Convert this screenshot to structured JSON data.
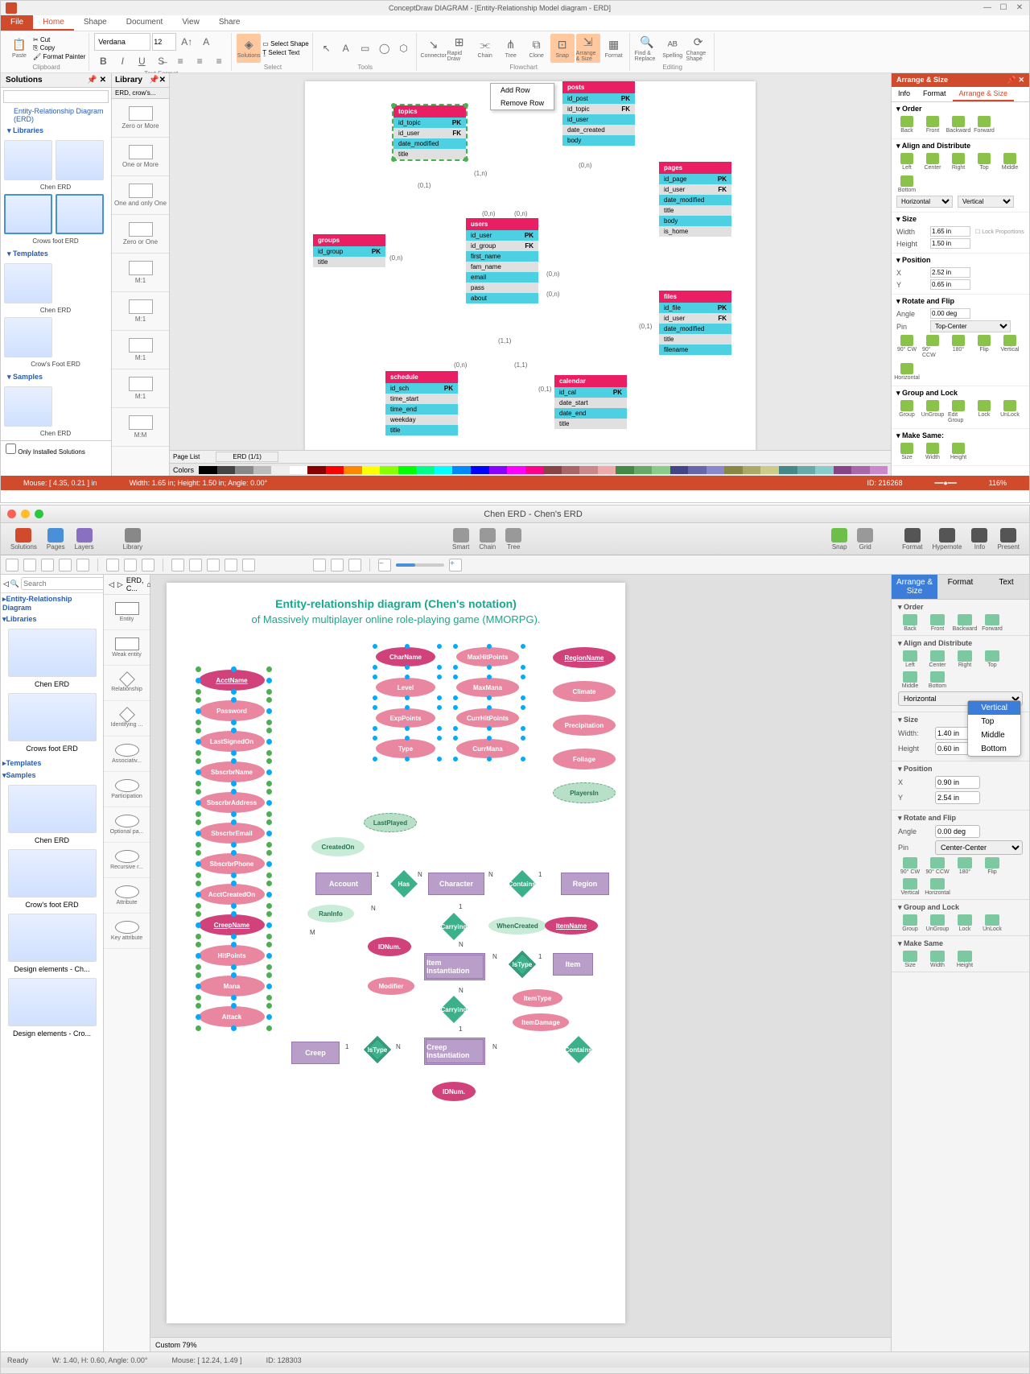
{
  "win": {
    "title": "ConceptDraw DIAGRAM - [Entity-Relationship Model diagram - ERD]",
    "tabs": [
      "File",
      "Home",
      "Shape",
      "Document",
      "View",
      "Share"
    ],
    "font": "Verdana",
    "size": "12",
    "ribbon_groups": [
      "Clipboard",
      "Text Format",
      "Select",
      "Tools",
      "Flowchart",
      "Panels",
      "Editing"
    ],
    "clipboard": {
      "paste": "Paste",
      "cut": "Cut",
      "copy": "Copy",
      "fmt": "Format Painter"
    },
    "tools": {
      "solutions": "Solutions",
      "selshape": "Select Shape",
      "seltext": "Select Text"
    },
    "flow": [
      "Connector",
      "Rapid Draw",
      "Chain",
      "Tree",
      "Clone",
      "Snap",
      "Arrange & Size",
      "Format"
    ],
    "editing": [
      "Find & Replace",
      "Spelling",
      "Change Shape"
    ],
    "solutions": {
      "hdr": "Solutions",
      "erd": "Entity-Relationship Diagram (ERD)",
      "libs": "Libraries",
      "templates": "Templates",
      "samples": "Samples",
      "items": [
        "Chen ERD",
        "Crows foot ERD",
        "Chen ERD",
        "Crow's Foot ERD",
        "Chen ERD"
      ],
      "only": "Only Installed Solutions"
    },
    "library": {
      "hdr": "Library",
      "tab": "ERD, crow's...",
      "items": [
        "Zero or More",
        "One or More",
        "One and only One",
        "Zero or One",
        "M:1",
        "M:1",
        "M:1",
        "M:1",
        "M:M"
      ]
    },
    "ctxmenu": [
      "Add Row",
      "Remove Row"
    ],
    "erd": {
      "topics": {
        "name": "topics",
        "rows": [
          [
            "id_topic",
            "PK"
          ],
          [
            "id_user",
            "FK"
          ],
          [
            "date_modified",
            ""
          ],
          [
            "title",
            ""
          ]
        ]
      },
      "posts": {
        "name": "posts",
        "rows": [
          [
            "id_post",
            "PK"
          ],
          [
            "id_topic",
            "FK"
          ],
          [
            "id_user",
            ""
          ],
          [
            "date_created",
            ""
          ],
          [
            "body",
            ""
          ]
        ]
      },
      "pages": {
        "name": "pages",
        "rows": [
          [
            "id_page",
            "PK"
          ],
          [
            "id_user",
            "FK"
          ],
          [
            "date_modified",
            ""
          ],
          [
            "title",
            ""
          ],
          [
            "body",
            ""
          ],
          [
            "is_home",
            ""
          ]
        ]
      },
      "groups": {
        "name": "groups",
        "rows": [
          [
            "id_group",
            "PK"
          ],
          [
            "title",
            ""
          ]
        ]
      },
      "users": {
        "name": "users",
        "rows": [
          [
            "id_user",
            "PK"
          ],
          [
            "id_group",
            "FK"
          ],
          [
            "first_name",
            ""
          ],
          [
            "fam_name",
            ""
          ],
          [
            "email",
            ""
          ],
          [
            "pass",
            ""
          ],
          [
            "about",
            ""
          ]
        ]
      },
      "files": {
        "name": "files",
        "rows": [
          [
            "id_file",
            "PK"
          ],
          [
            "id_user",
            "FK"
          ],
          [
            "date_modified",
            ""
          ],
          [
            "title",
            ""
          ],
          [
            "filename",
            ""
          ]
        ]
      },
      "schedule": {
        "name": "schedule",
        "rows": [
          [
            "id_sch",
            "PK"
          ],
          [
            "time_start",
            ""
          ],
          [
            "time_end",
            ""
          ],
          [
            "weekday",
            ""
          ],
          [
            "title",
            ""
          ]
        ]
      },
      "calendar": {
        "name": "calendar",
        "rows": [
          [
            "id_cal",
            "PK"
          ],
          [
            "date_start",
            ""
          ],
          [
            "date_end",
            ""
          ],
          [
            "title",
            ""
          ]
        ]
      }
    },
    "conns": [
      "(1,1)",
      "(1,n)",
      "(0,1)",
      "(0,n)",
      "(0,n)",
      "(0,1)",
      "(0,n)",
      "(1,1)",
      "(0,n)",
      "(0,n)",
      "(0,n)",
      "(0,1)",
      "(1,1)",
      "(0,n)"
    ],
    "right": {
      "hdr": "Arrange & Size",
      "tabs": [
        "Info",
        "Format",
        "Arrange & Size"
      ],
      "order": {
        "hdr": "Order",
        "items": [
          "Back",
          "Front",
          "Backward",
          "Forward"
        ]
      },
      "align": {
        "hdr": "Align and Distribute",
        "h": [
          "Left",
          "Center",
          "Right"
        ],
        "v": [
          "Top",
          "Middle",
          "Bottom"
        ],
        "hsel": "Horizontal",
        "vsel": "Vertical"
      },
      "size": {
        "hdr": "Size",
        "w": "1.65 in",
        "h": "1.50 in",
        "lock": "Lock Proportions"
      },
      "pos": {
        "hdr": "Position",
        "x": "2.52 in",
        "y": "0.65 in"
      },
      "rot": {
        "hdr": "Rotate and Flip",
        "angle": "0.00 deg",
        "pin": "Top-Center",
        "items": [
          "90° CW",
          "90° CCW",
          "180°",
          "Flip",
          "Vertical",
          "Horizontal"
        ]
      },
      "group": {
        "hdr": "Group and Lock",
        "items": [
          "Group",
          "UnGroup",
          "Edit Group",
          "Lock",
          "UnLock"
        ]
      },
      "make": {
        "hdr": "Make Same:",
        "items": [
          "Size",
          "Width",
          "Height"
        ]
      }
    },
    "pagelist": "Page List",
    "pagename": "ERD (1/1)",
    "colors": "Colors",
    "status": {
      "mouse": "Mouse: [ 4.35, 0.21 ] in",
      "size": "Width: 1.65 in; Height: 1.50 in; Angle: 0.00°",
      "id": "ID: 216268",
      "zoom": "116%"
    }
  },
  "mac": {
    "title": "Chen ERD - Chen's ERD",
    "toolbar": [
      "Solutions",
      "Pages",
      "Layers",
      "Library"
    ],
    "toolbar_mid": [
      "Smart",
      "Chain",
      "Tree"
    ],
    "toolbar_r": [
      "Snap",
      "Grid",
      "Format",
      "Hypernote",
      "Info",
      "Present"
    ],
    "breadcrumb": "ERD, C...",
    "left": {
      "erd": "Entity-Relationship Diagram",
      "libs": "Libraries",
      "tmpl": "Templates",
      "samp": "Samples",
      "items": [
        "Chen ERD",
        "Crows foot ERD",
        "Chen ERD",
        "Crow's foot ERD",
        "Design elements - Ch...",
        "Design elements - Cro..."
      ]
    },
    "lib": [
      "Entity",
      "Weak entity",
      "Relationship",
      "Identifying ...",
      "Associativ...",
      "Participation",
      "Optional pa...",
      "Recursive r...",
      "Attribute",
      "Key attribute"
    ],
    "canvas": {
      "title": "Entity-relationship diagram (Chen's notation)",
      "subtitle": "of Massively multiplayer online role-playing game (MMORPG).",
      "col1": [
        "AcctName",
        "Password",
        "LastSignedOn",
        "SbscrbrName",
        "SbscrbrAddress",
        "SbscrbrEmail",
        "SbscrbrPhone",
        "AcctCreatedOn",
        "CreepName",
        "HitPoints",
        "Mana",
        "Attack"
      ],
      "col2": [
        "CharName",
        "Level",
        "ExpPoints",
        "Type"
      ],
      "col3": [
        "MaxHitPoints",
        "MaxMana",
        "CurrHitPoints",
        "CurrMana"
      ],
      "col4": [
        "RegionName",
        "Climate",
        "Precipitation",
        "Foliage",
        "PlayersIn"
      ],
      "derived": [
        "LastPlayed",
        "CreatedOn",
        "RanInfo",
        "WhenCreated"
      ],
      "key": [
        "IDNum.",
        "IDNum."
      ],
      "itemattr": [
        "ItemName",
        "ItemType",
        "ItemDamage",
        "Modifier"
      ],
      "entities": [
        "Account",
        "Character",
        "Region",
        "Creep",
        "Item Instantiation",
        "Item",
        "Creep Instantiation"
      ],
      "rels": [
        "Has",
        "Contains",
        "Carrying",
        "IsType",
        "Carrying",
        "IsType",
        "Contains"
      ]
    },
    "right": {
      "tabs": [
        "Arrange & Size",
        "Format",
        "Text"
      ],
      "order": {
        "hdr": "Order",
        "items": [
          "Back",
          "Front",
          "Backward",
          "Forward"
        ]
      },
      "align": {
        "hdr": "Align and Distribute",
        "h": [
          "Left",
          "Center",
          "Right"
        ],
        "v": [
          "Top",
          "Middle",
          "Bottom"
        ],
        "hsel": "Horizontal",
        "vsel": "Vertical",
        "dd": [
          "Vertical",
          "Top",
          "Middle",
          "Bottom"
        ]
      },
      "size": {
        "hdr": "Size",
        "w": "1.40 in",
        "h": "0.60 in"
      },
      "pos": {
        "hdr": "Position",
        "x": "0.90 in",
        "y": "2.54 in"
      },
      "rot": {
        "hdr": "Rotate and Flip",
        "angle": "0.00 deg",
        "pin": "Center-Center",
        "items": [
          "90° CW",
          "90° CCW",
          "180°",
          "Flip",
          "Vertical",
          "Horizontal"
        ]
      },
      "group": {
        "hdr": "Group and Lock",
        "items": [
          "Group",
          "UnGroup",
          "Lock",
          "UnLock"
        ]
      },
      "make": {
        "hdr": "Make Same",
        "items": [
          "Size",
          "Width",
          "Height"
        ]
      }
    },
    "footer": {
      "zoom": "Custom 79%"
    },
    "status": {
      "ready": "Ready",
      "size": "W: 1.40, H: 0.60, Angle: 0.00°",
      "mouse": "Mouse: [ 12.24, 1.49 ]",
      "id": "ID: 128303"
    }
  },
  "palette": [
    "#000",
    "#444",
    "#888",
    "#bbb",
    "#eee",
    "#fff",
    "#800",
    "#f00",
    "#f80",
    "#ff0",
    "#8f0",
    "#0f0",
    "#0f8",
    "#0ff",
    "#08f",
    "#00f",
    "#80f",
    "#f0f",
    "#f08",
    "#844",
    "#a66",
    "#c88",
    "#eaa",
    "#484",
    "#6a6",
    "#8c8",
    "#448",
    "#66a",
    "#88c",
    "#884",
    "#aa6",
    "#cc8",
    "#488",
    "#6aa",
    "#8cc",
    "#848",
    "#a6a",
    "#c8c"
  ]
}
